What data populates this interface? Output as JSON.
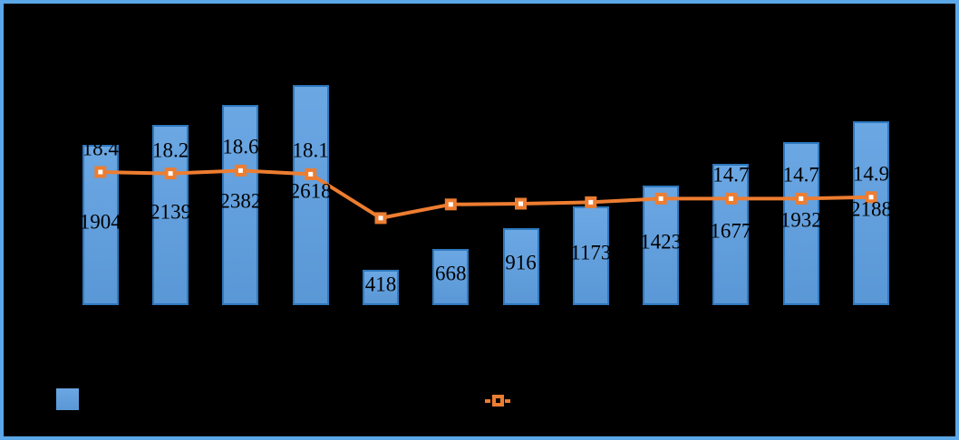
{
  "chart_data": {
    "type": "combo",
    "title": "",
    "background_color": "#000000",
    "frame_color": "#5BA7E8",
    "n_categories": 12,
    "categories_visible": false,
    "axes_visible": false,
    "grid": false,
    "bar_series": {
      "type": "bar",
      "fill_color": "#63A2DF",
      "border_color": "#2E79C0",
      "values": [
        1904,
        2139,
        2382,
        2618,
        418,
        668,
        916,
        1173,
        1423,
        1677,
        1932,
        2188
      ],
      "data_labels": [
        "1904",
        "2139",
        "2382",
        "2618",
        "418",
        "668",
        "916",
        "1173",
        "1423",
        "1677",
        "1932",
        "2188"
      ],
      "label_position": "inside-center",
      "label_color": "#000000"
    },
    "line_series": {
      "type": "line",
      "color": "#ED7D31",
      "marker": "square-with-white-center",
      "marker_color": "#ED7D31",
      "marker_center_color": "#FFFFFF",
      "values": [
        18.4,
        18.2,
        18.6,
        18.1,
        12.0,
        13.9,
        14.0,
        14.2,
        14.7,
        14.7,
        14.7,
        14.9
      ],
      "data_labels": [
        "18.4",
        "18.2",
        "18.6",
        "18.1",
        "",
        "",
        "",
        "",
        "",
        "14.7",
        "14.7",
        "14.9"
      ],
      "label_position": "above-marker",
      "label_color": "#000000",
      "secondary_axis": true
    },
    "legend": {
      "position": "bottom",
      "entries": [
        {
          "swatch": "bar-square",
          "color": "#63A2DF",
          "label": ""
        },
        {
          "swatch": "line-with-marker",
          "color": "#ED7D31",
          "label": ""
        }
      ]
    }
  }
}
